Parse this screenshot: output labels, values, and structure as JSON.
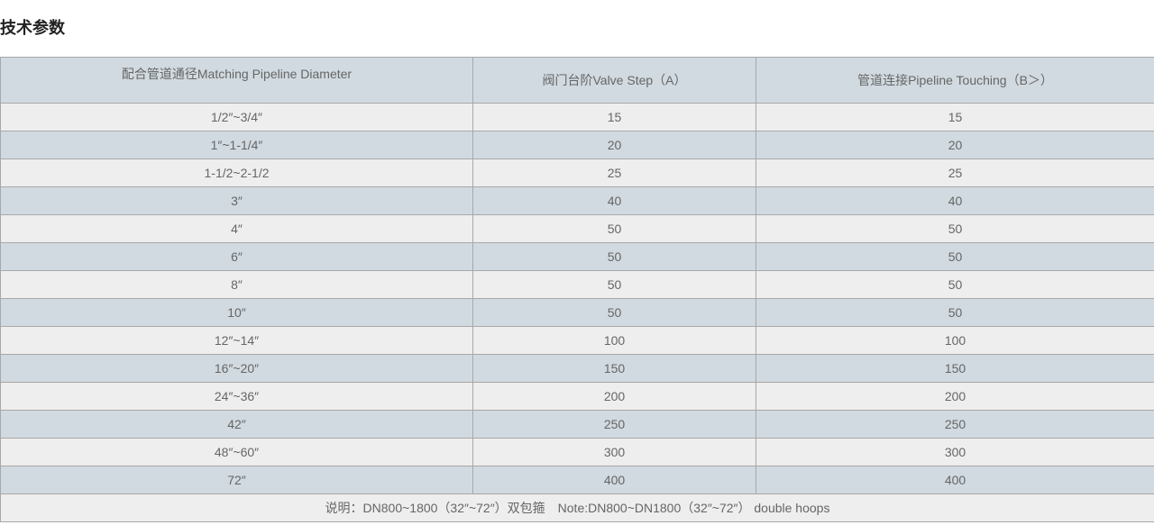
{
  "title": "技术参数",
  "table": {
    "headers": [
      "配合管道通径Matching Pipeline Diameter",
      "阀门台阶Valve Step（A）",
      "管道连接Pipeline Touching（B＞）"
    ],
    "rows": [
      [
        "1/2″~3/4″",
        "15",
        "15"
      ],
      [
        "1″~1-1/4″",
        "20",
        "20"
      ],
      [
        "1-1/2~2-1/2",
        "25",
        "25"
      ],
      [
        "3″",
        "40",
        "40"
      ],
      [
        "4″",
        "50",
        "50"
      ],
      [
        "6″",
        "50",
        "50"
      ],
      [
        "8″",
        "50",
        "50"
      ],
      [
        "10″",
        "50",
        "50"
      ],
      [
        "12″~14″",
        "100",
        "100"
      ],
      [
        "16″~20″",
        "150",
        "150"
      ],
      [
        "24″~36″",
        "200",
        "200"
      ],
      [
        "42″",
        "250",
        "250"
      ],
      [
        "48″~60″",
        "300",
        "300"
      ],
      [
        "72″",
        "400",
        "400"
      ]
    ],
    "note": "说明：DN800~1800（32″~72″）双包箍　Note:DN800~DN1800（32″~72″） double hoops"
  },
  "colors": {
    "header_bg": "#d1dae0",
    "row_alt_bg": "#eeeeee",
    "border": "#a8a8a8"
  }
}
